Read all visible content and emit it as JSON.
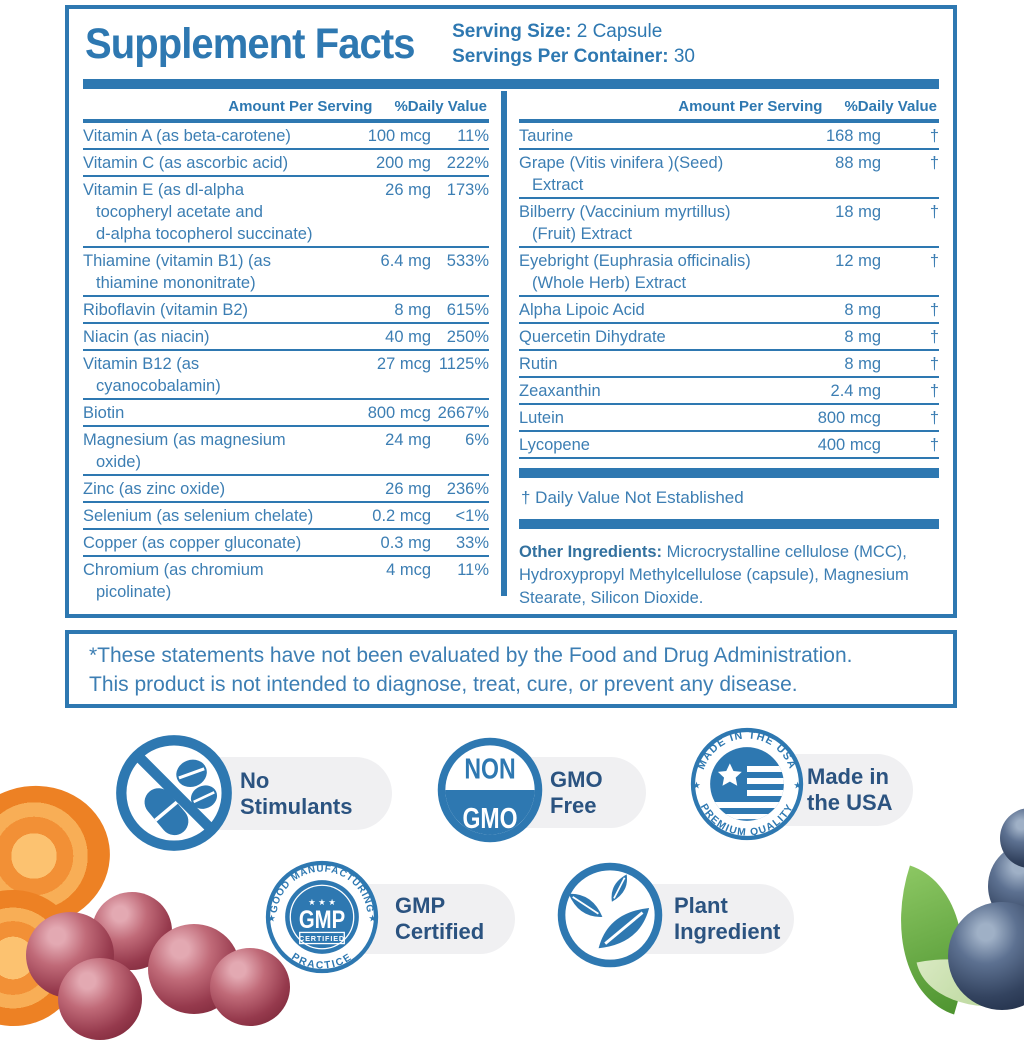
{
  "colors": {
    "accent_blue": "#2e78b1",
    "row_text_blue": "#3c7eb3",
    "badge_navy": "#2b5380",
    "pill_gray": "#f0f0f2"
  },
  "label": {
    "title": "Supplement Facts",
    "serving_size_label": "Serving Size:",
    "serving_size_value": " 2 Capsule",
    "servings_label": "Servings Per Container:",
    "servings_value": " 30",
    "col_header_amount": "Amount Per Serving",
    "col_header_dv": "%Daily Value",
    "left_rows": [
      {
        "name": "Vitamin A (as beta-carotene)",
        "amount": "100 mcg",
        "dv": "11%"
      },
      {
        "name": "Vitamin C (as ascorbic acid)",
        "amount": "200 mg",
        "dv": "222%"
      },
      {
        "name": "Vitamin E (as dl-alpha\ntocopheryl acetate and\nd-alpha tocopherol succinate)",
        "amount": "26 mg",
        "dv": "173%"
      },
      {
        "name": "Thiamine (vitamin B1) (as\nthiamine mononitrate)",
        "amount": "6.4 mg",
        "dv": "533%"
      },
      {
        "name": "Riboflavin (vitamin B2)",
        "amount": "8 mg",
        "dv": "615%"
      },
      {
        "name": "Niacin (as niacin)",
        "amount": "40 mg",
        "dv": "250%"
      },
      {
        "name": "Vitamin B12 (as\ncyanocobalamin)",
        "amount": "27 mcg",
        "dv": "1125%"
      },
      {
        "name": "Biotin",
        "amount": "800 mcg",
        "dv": "2667%"
      },
      {
        "name": "Magnesium (as magnesium\noxide)",
        "amount": "24 mg",
        "dv": "6%"
      },
      {
        "name": "Zinc (as zinc oxide)",
        "amount": "26 mg",
        "dv": "236%"
      },
      {
        "name": "Selenium (as selenium chelate)",
        "amount": "0.2 mcg",
        "dv": "<1%"
      },
      {
        "name": "Copper (as copper gluconate)",
        "amount": "0.3 mg",
        "dv": "33%"
      },
      {
        "name": "Chromium (as chromium\npicolinate)",
        "amount": "4 mcg",
        "dv": "11%"
      }
    ],
    "right_rows": [
      {
        "name": "Taurine",
        "amount": "168 mg",
        "dv": "†"
      },
      {
        "name": "Grape (Vitis vinifera )(Seed)\nExtract",
        "amount": "88 mg",
        "dv": "†"
      },
      {
        "name": "Bilberry (Vaccinium myrtillus)\n(Fruit) Extract",
        "amount": "18 mg",
        "dv": "†"
      },
      {
        "name": "Eyebright (Euphrasia officinalis)\n(Whole Herb) Extract",
        "amount": "12 mg",
        "dv": "†"
      },
      {
        "name": "Alpha Lipoic Acid",
        "amount": "8 mg",
        "dv": "†"
      },
      {
        "name": "Quercetin Dihydrate",
        "amount": "8 mg",
        "dv": "†"
      },
      {
        "name": "Rutin",
        "amount": "8 mg",
        "dv": "†"
      },
      {
        "name": "Zeaxanthin",
        "amount": "2.4 mg",
        "dv": "†"
      },
      {
        "name": "Lutein",
        "amount": "800 mcg",
        "dv": "†"
      },
      {
        "name": "Lycopene",
        "amount": "400 mcg",
        "dv": "†"
      }
    ],
    "footnote": "† Daily Value Not Established",
    "other_ingredients_label": "Other Ingredients:",
    "other_ingredients_text": " Microcrystalline cellulose (MCC),  Hydroxypropyl Methylcellulose (capsule), Magnesium Stearate, Silicon Dioxide."
  },
  "disclaimer": {
    "line1": "*These statements have not been evaluated by the Food and Drug Administration.",
    "line2": "This product is not intended to diagnose, treat, cure, or prevent any disease."
  },
  "badges": {
    "no_stimulants": {
      "line1": "No",
      "line2": "Stimulants"
    },
    "non_gmo": {
      "line1": "GMO",
      "line2": "Free",
      "seal_top": "NON",
      "seal_bottom": "GMO"
    },
    "made_usa": {
      "line1": "Made in",
      "line2": "the USA",
      "arc_top": "MADE IN THE USA",
      "arc_bottom": "PREMIUM QUALITY",
      "star": "★"
    },
    "gmp": {
      "line1": "GMP",
      "line2": "Certified",
      "arc_top": "GOOD MANUFACTURING",
      "arc_bottom": "PRACTICE",
      "center": "GMP",
      "sub": "CERTIFIED",
      "stars": "★ ★ ★",
      "star": "★"
    },
    "plant": {
      "line1": "Plant",
      "line2": "Ingredient"
    }
  }
}
